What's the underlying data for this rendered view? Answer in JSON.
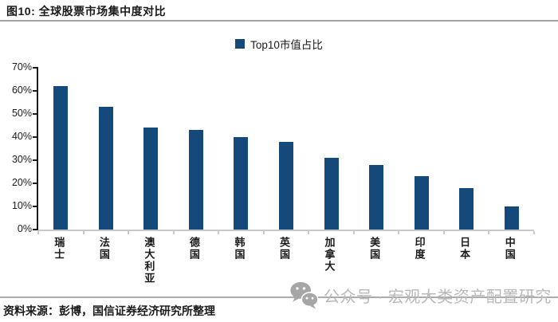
{
  "figure": {
    "title": "图10: 全球股票市场集中度对比",
    "source": "资料来源：彭博，国信证券经济研究所整理"
  },
  "legend": {
    "label": "Top10市值占比"
  },
  "watermark": {
    "icon": "wechat-icon",
    "text": "公众号 · 宏观大类资产配置研究"
  },
  "colors": {
    "bar": "#15497C",
    "y_axis": "#1a1a1a",
    "x_axis": "#c9c9c9",
    "divider": "#a3a3a3",
    "watermark_gray": "#b8b8b8"
  },
  "chart_data": {
    "type": "bar",
    "title": "图10: 全球股票市场集中度对比",
    "series_name": "Top10市值占比",
    "categories": [
      "瑞士",
      "法国",
      "澳大利亚",
      "德国",
      "韩国",
      "英国",
      "加拿大",
      "美国",
      "印度",
      "日本",
      "中国"
    ],
    "values": [
      62,
      53,
      44,
      43,
      40,
      38,
      31,
      28,
      23,
      18,
      10
    ],
    "unit": "%",
    "ylim": [
      0,
      70
    ],
    "ytick_labels": [
      "70%",
      "60%",
      "50%",
      "40%",
      "30%",
      "20%",
      "10%",
      "0%"
    ],
    "xlabel": "",
    "ylabel": "",
    "grid": false,
    "legend_position": "top-center"
  }
}
